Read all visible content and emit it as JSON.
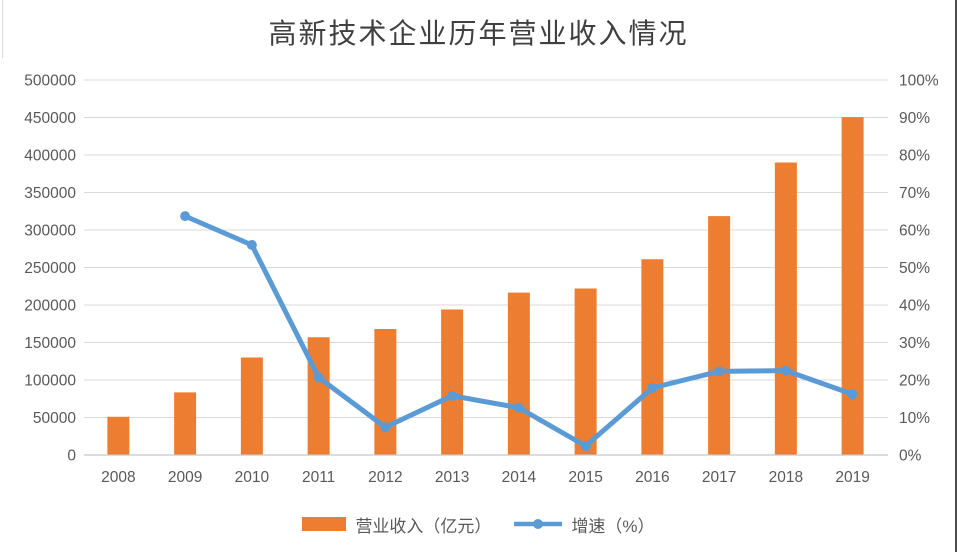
{
  "chart_data": {
    "type": "combo",
    "title": "高新技术企业历年营业收入情况",
    "categories": [
      "2008",
      "2009",
      "2010",
      "2011",
      "2012",
      "2013",
      "2014",
      "2015",
      "2016",
      "2017",
      "2018",
      "2019"
    ],
    "series": [
      {
        "name": "营业收入（亿元）",
        "type": "bar",
        "axis": "left",
        "color": "#ED7D31",
        "values": [
          51000,
          83500,
          130000,
          157000,
          168000,
          194000,
          216500,
          222000,
          261000,
          318500,
          390000,
          450500
        ]
      },
      {
        "name": "增速（%）",
        "type": "line",
        "axis": "right",
        "color": "#5B9BD5",
        "values": [
          null,
          63.7,
          56.0,
          20.7,
          7.4,
          15.8,
          12.6,
          2.4,
          17.9,
          22.3,
          22.5,
          16.2
        ]
      }
    ],
    "left_axis": {
      "min": 0,
      "max": 500000,
      "step": 50000
    },
    "right_axis": {
      "min": 0,
      "max": 100,
      "step": 10,
      "suffix": "%"
    },
    "grid": true,
    "legend_position": "bottom",
    "colors": {
      "grid": "#D9D9D9",
      "axis_line": "#C6C6C6",
      "tick_label": "#595959",
      "title": "#404040",
      "right_border": "#4D4D4D"
    }
  }
}
